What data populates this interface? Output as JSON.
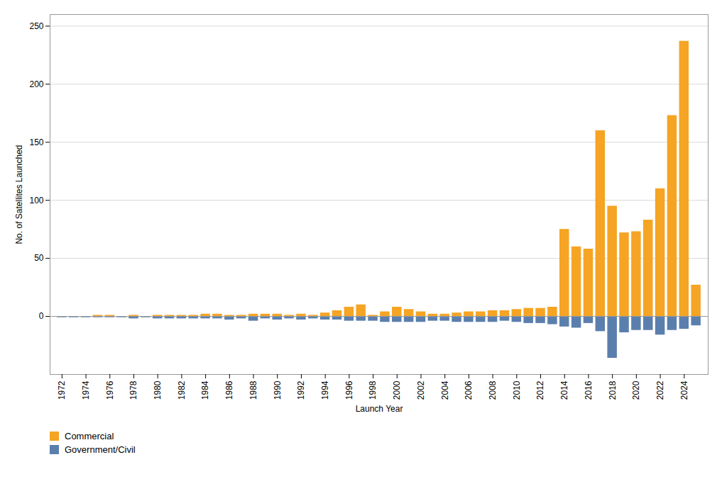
{
  "chart_data": {
    "type": "bar",
    "xlabel": "Launch Year",
    "ylabel": "No. of Satellites Launched",
    "x": [
      1972,
      1973,
      1974,
      1975,
      1976,
      1977,
      1978,
      1979,
      1980,
      1981,
      1982,
      1983,
      1984,
      1985,
      1986,
      1987,
      1988,
      1989,
      1990,
      1991,
      1992,
      1993,
      1994,
      1995,
      1996,
      1997,
      1998,
      1999,
      2000,
      2001,
      2002,
      2003,
      2004,
      2005,
      2006,
      2007,
      2008,
      2009,
      2010,
      2011,
      2012,
      2013,
      2014,
      2015,
      2016,
      2017,
      2018,
      2019,
      2020,
      2021,
      2022,
      2023,
      2024,
      2025
    ],
    "series": [
      {
        "name": "Commercial",
        "color": "#f5a424",
        "values": [
          0,
          0,
          0,
          1,
          1,
          0,
          1,
          0,
          1,
          1,
          1,
          1,
          2,
          2,
          1,
          1,
          2,
          2,
          2,
          1,
          2,
          1,
          3,
          5,
          8,
          10,
          1,
          4,
          8,
          6,
          4,
          2,
          2,
          3,
          4,
          4,
          5,
          5,
          6,
          7,
          7,
          8,
          75,
          60,
          58,
          160,
          95,
          72,
          73,
          83,
          110,
          173,
          237,
          27
        ]
      },
      {
        "name": "Government/Civil",
        "color": "#5b7fad",
        "values": [
          -1,
          -1,
          -1,
          -1,
          -1,
          -1,
          -2,
          -1,
          -2,
          -2,
          -2,
          -2,
          -2,
          -2,
          -3,
          -2,
          -4,
          -2,
          -3,
          -2,
          -3,
          -2,
          -3,
          -3,
          -4,
          -4,
          -4,
          -5,
          -5,
          -5,
          -5,
          -4,
          -4,
          -5,
          -5,
          -5,
          -5,
          -4,
          -5,
          -6,
          -6,
          -7,
          -9,
          -10,
          -6,
          -13,
          -36,
          -14,
          -12,
          -12,
          -16,
          -12,
          -11,
          -8
        ]
      }
    ],
    "xlim": [
      1971,
      2026
    ],
    "xticks": [
      1972,
      1974,
      1976,
      1978,
      1980,
      1982,
      1984,
      1986,
      1988,
      1990,
      1992,
      1994,
      1996,
      1998,
      2000,
      2002,
      2004,
      2006,
      2008,
      2010,
      2012,
      2014,
      2016,
      2018,
      2020,
      2022,
      2024
    ],
    "ylim": [
      -50,
      260
    ],
    "yticks": [
      0,
      50,
      100,
      150,
      200,
      250
    ],
    "grid": true,
    "legend": "below"
  }
}
